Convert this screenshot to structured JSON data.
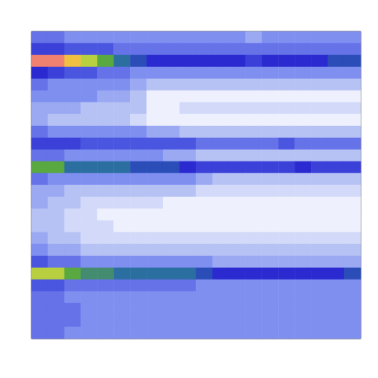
{
  "chart_data": {
    "type": "heatmap",
    "cells": [
      [
        3.5,
        3.5,
        3,
        3,
        3,
        3,
        3,
        3,
        3,
        3,
        3,
        3,
        3,
        2.5,
        3,
        3,
        3,
        3,
        3,
        3
      ],
      [
        4.5,
        4.5,
        4,
        4,
        4,
        3.5,
        3.5,
        3.5,
        3.5,
        3.5,
        3.5,
        3.5,
        3.5,
        3.5,
        3.5,
        3.5,
        3.5,
        3.5,
        3.5,
        3.5
      ],
      [
        10,
        10,
        9,
        8,
        7,
        6,
        5.5,
        5,
        5,
        5,
        5,
        5,
        5,
        4.5,
        5,
        5,
        5,
        5,
        5.5,
        5.5
      ],
      [
        5,
        4.5,
        4,
        4,
        3.5,
        3.5,
        3,
        3,
        3,
        3,
        3,
        3,
        3,
        3,
        3,
        3,
        3,
        3,
        3,
        3
      ],
      [
        3.5,
        3,
        3,
        3,
        3,
        3,
        2.5,
        2,
        2,
        2,
        2,
        2,
        2,
        2,
        2,
        2,
        2,
        2,
        2,
        2
      ],
      [
        3,
        3,
        3,
        3,
        2.5,
        2.5,
        2,
        1,
        1,
        1,
        1,
        1,
        1,
        1,
        1,
        1,
        1,
        1,
        1,
        1
      ],
      [
        2.5,
        2.5,
        2.5,
        2,
        2,
        2,
        2,
        1,
        1,
        1.5,
        1.5,
        1.5,
        1.5,
        1.5,
        1.5,
        1.5,
        1.5,
        1.5,
        1.5,
        1.5
      ],
      [
        2.5,
        2,
        2,
        2,
        2,
        2,
        1.5,
        1,
        1,
        1,
        1,
        1,
        1,
        1,
        1,
        1,
        1,
        1,
        1,
        1
      ],
      [
        3.5,
        3,
        3,
        3,
        3,
        3,
        3,
        2.5,
        2.5,
        2,
        2,
        2,
        2,
        2,
        2,
        2,
        2,
        2,
        2,
        2
      ],
      [
        4.5,
        4.5,
        4.5,
        4,
        4,
        4,
        4,
        4,
        4,
        4,
        3.5,
        3.5,
        3.5,
        3.5,
        3.5,
        4,
        3.5,
        3.5,
        3.5,
        3.5
      ],
      [
        3.5,
        3.5,
        3,
        3,
        3,
        3,
        3,
        3,
        2.5,
        2.5,
        2,
        2,
        2,
        2,
        2,
        2,
        2,
        2,
        2,
        2
      ],
      [
        7,
        7,
        6,
        6,
        6,
        6,
        5.5,
        5.5,
        5.5,
        5,
        4.5,
        4.5,
        4.5,
        4.5,
        4.5,
        4.5,
        5,
        4.5,
        4.5,
        4.5
      ],
      [
        3.5,
        3,
        3,
        3,
        3,
        3,
        3,
        3,
        3,
        3,
        2.5,
        2,
        2,
        2,
        2,
        2,
        2,
        2,
        2,
        2
      ],
      [
        2.5,
        2.5,
        2,
        2,
        2,
        2,
        2,
        2,
        2,
        2,
        1.5,
        1.5,
        1.5,
        1.5,
        1.5,
        1.5,
        1.5,
        1.5,
        1.5,
        1.5
      ],
      [
        2.5,
        2,
        2,
        1.5,
        1.5,
        1.5,
        1.5,
        1.5,
        1,
        1,
        1,
        1,
        1,
        1,
        1,
        1,
        1,
        1,
        1,
        1
      ],
      [
        2,
        2,
        1.5,
        1.5,
        1,
        1,
        1,
        1,
        1,
        1,
        1,
        1,
        1,
        1,
        1,
        1,
        1,
        1,
        1,
        1
      ],
      [
        2,
        2,
        1.5,
        1.5,
        1.5,
        1,
        1,
        1,
        1,
        1,
        1,
        1,
        1,
        1,
        1,
        1,
        1,
        1,
        1,
        1
      ],
      [
        2.5,
        2,
        2,
        1.5,
        1.5,
        1.5,
        1.5,
        1.5,
        1.5,
        1.5,
        1.5,
        1.5,
        1.5,
        1.5,
        1.5,
        1.5,
        1.5,
        1.5,
        1.5,
        1.5
      ],
      [
        3,
        2.5,
        2.5,
        2,
        2,
        2,
        2,
        2,
        2,
        2,
        2,
        2,
        2,
        2,
        2,
        2,
        2,
        2,
        2,
        2
      ],
      [
        4,
        3.5,
        3.5,
        3,
        3,
        3,
        3,
        3,
        3,
        3,
        3,
        2.5,
        2.5,
        2.5,
        2.5,
        2.5,
        2.5,
        2.5,
        2.5,
        2.5
      ],
      [
        8,
        8,
        7,
        6.5,
        6.5,
        6,
        6,
        6,
        6,
        6,
        5.5,
        5,
        5,
        5,
        5,
        5,
        5,
        5,
        5,
        5.5
      ],
      [
        4,
        4,
        3.5,
        3.5,
        3.5,
        3.5,
        3.5,
        3.5,
        3.5,
        3.5,
        3,
        3,
        3,
        3,
        3,
        3,
        3,
        3,
        3,
        3
      ],
      [
        3.5,
        3.5,
        3,
        3,
        3,
        3,
        3,
        3,
        3,
        3,
        3,
        3,
        3,
        3,
        3,
        3,
        3,
        3,
        3,
        3
      ],
      [
        3.5,
        3.5,
        3.5,
        3,
        3,
        3,
        3,
        3,
        3,
        3,
        3,
        3,
        3,
        3,
        3,
        3,
        3,
        3,
        3,
        3
      ],
      [
        3.5,
        3.5,
        3.5,
        3,
        3,
        3,
        3,
        3,
        3,
        3,
        3,
        3,
        3,
        3,
        3,
        3,
        3,
        3,
        3,
        3
      ],
      [
        3.5,
        3.5,
        3,
        3,
        3,
        3,
        3,
        3,
        3,
        3,
        3,
        3,
        3,
        3,
        3,
        3,
        3,
        3,
        3,
        3
      ]
    ],
    "zlim": [
      0,
      10
    ],
    "tick_labels": false,
    "grid": false
  }
}
